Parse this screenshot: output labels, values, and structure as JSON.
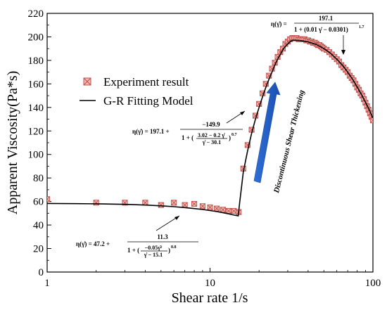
{
  "chart_data": {
    "type": "scatter",
    "xlabel": "Shear rate 1/s",
    "ylabel": "Apparent Viscosity(Pa*s)",
    "xscale": "log",
    "xlim": [
      1,
      100
    ],
    "ylim": [
      0,
      220
    ],
    "x_ticks": [
      1,
      10,
      100
    ],
    "x_tick_labels": [
      "1",
      "10",
      "100"
    ],
    "y_ticks": [
      0,
      20,
      40,
      60,
      80,
      100,
      120,
      140,
      160,
      180,
      200,
      220
    ],
    "y_tick_labels": [
      "0",
      "20",
      "40",
      "60",
      "80",
      "100",
      "120",
      "140",
      "160",
      "180",
      "200",
      "220"
    ],
    "grid": false,
    "legend": {
      "placement": "upper-left",
      "entries": [
        {
          "label": "Experiment result",
          "marker": "boxed-x",
          "color": "#c0504d",
          "fill": "#f4b8b0"
        },
        {
          "label": "G-R Fitting Model",
          "marker": "line",
          "color": "#000000"
        }
      ]
    },
    "series": [
      {
        "name": "Experiment result",
        "kind": "scatter",
        "points": [
          [
            1.0,
            62
          ],
          [
            2.0,
            59
          ],
          [
            3.0,
            59
          ],
          [
            4.0,
            59
          ],
          [
            5.0,
            57
          ],
          [
            6.0,
            59
          ],
          [
            7.0,
            57
          ],
          [
            8.0,
            58
          ],
          [
            9.0,
            56
          ],
          [
            10.0,
            55
          ],
          [
            11.0,
            54
          ],
          [
            12.0,
            53
          ],
          [
            13.0,
            52
          ],
          [
            14.0,
            52
          ],
          [
            15.0,
            51
          ],
          [
            16.0,
            88
          ],
          [
            17.0,
            108
          ],
          [
            18.0,
            121
          ],
          [
            19.0,
            133
          ],
          [
            20.0,
            143
          ],
          [
            21.0,
            152
          ],
          [
            22.0,
            160
          ],
          [
            23.0,
            167
          ],
          [
            24.0,
            173
          ],
          [
            25.0,
            178
          ],
          [
            26.0,
            183
          ],
          [
            27.0,
            187
          ],
          [
            28.0,
            190
          ],
          [
            29.0,
            194
          ],
          [
            30.0,
            196
          ],
          [
            31.0,
            198
          ],
          [
            32.0,
            199
          ],
          [
            33.0,
            199
          ],
          [
            34.0,
            199
          ],
          [
            35.0,
            198
          ],
          [
            36.0,
            198
          ],
          [
            37.0,
            198
          ],
          [
            38.0,
            198
          ],
          [
            39.0,
            197
          ],
          [
            40.0,
            197
          ],
          [
            41.0,
            196
          ],
          [
            42.0,
            196
          ],
          [
            43.0,
            195
          ],
          [
            44.0,
            195
          ],
          [
            45.0,
            194
          ],
          [
            46.0,
            193
          ],
          [
            47.0,
            193
          ],
          [
            48.0,
            192
          ],
          [
            49.0,
            191
          ],
          [
            50.0,
            190
          ],
          [
            52.0,
            189
          ],
          [
            54.0,
            187
          ],
          [
            56.0,
            185
          ],
          [
            58.0,
            183
          ],
          [
            60.0,
            181
          ],
          [
            62.0,
            179
          ],
          [
            64.0,
            176
          ],
          [
            66.0,
            174
          ],
          [
            68.0,
            172
          ],
          [
            70.0,
            170
          ],
          [
            72.0,
            167
          ],
          [
            74.0,
            165
          ],
          [
            76.0,
            163
          ],
          [
            78.0,
            160
          ],
          [
            80.0,
            157
          ],
          [
            82.0,
            155
          ],
          [
            84.0,
            152
          ],
          [
            86.0,
            150
          ],
          [
            88.0,
            147
          ],
          [
            90.0,
            144
          ],
          [
            92.0,
            141
          ],
          [
            94.0,
            138
          ],
          [
            96.0,
            135
          ],
          [
            98.0,
            132
          ],
          [
            100.0,
            129
          ]
        ]
      },
      {
        "name": "G-R Fitting Model",
        "kind": "line",
        "points": [
          [
            1.0,
            58.3
          ],
          [
            1.5,
            58.2
          ],
          [
            2.0,
            58.0
          ],
          [
            3.0,
            57.6
          ],
          [
            4.0,
            57.0
          ],
          [
            5.0,
            56.3
          ],
          [
            6.0,
            55.6
          ],
          [
            7.0,
            54.8
          ],
          [
            8.0,
            54.0
          ],
          [
            9.0,
            53.2
          ],
          [
            10.0,
            52.3
          ],
          [
            11.0,
            51.4
          ],
          [
            12.0,
            50.5
          ],
          [
            13.0,
            49.5
          ],
          [
            14.0,
            48.5
          ],
          [
            14.9,
            47.8
          ],
          [
            15.2,
            59
          ],
          [
            15.6,
            72
          ],
          [
            16.0,
            85
          ],
          [
            17.0,
            103
          ],
          [
            18.0,
            118
          ],
          [
            19.0,
            130
          ],
          [
            20.0,
            140
          ],
          [
            21.0,
            149
          ],
          [
            22.0,
            157
          ],
          [
            23.0,
            164
          ],
          [
            24.0,
            170
          ],
          [
            25.0,
            176
          ],
          [
            26.0,
            181
          ],
          [
            27.0,
            185
          ],
          [
            28.0,
            189
          ],
          [
            29.0,
            192
          ],
          [
            30.0,
            194
          ],
          [
            31.0,
            196
          ],
          [
            32.0,
            197
          ],
          [
            33.0,
            197
          ],
          [
            35.0,
            197
          ],
          [
            37.0,
            196.6
          ],
          [
            40.0,
            195.8
          ],
          [
            45.0,
            193.5
          ],
          [
            50.0,
            190
          ],
          [
            55.0,
            186
          ],
          [
            60.0,
            181
          ],
          [
            65.0,
            176
          ],
          [
            70.0,
            170
          ],
          [
            75.0,
            164
          ],
          [
            80.0,
            157.5
          ],
          [
            85.0,
            151
          ],
          [
            90.0,
            144.5
          ],
          [
            95.0,
            138
          ],
          [
            100.0,
            131
          ]
        ]
      }
    ],
    "annotations": {
      "eq_low": {
        "lhs": "η(γ̇) = 47.2 +",
        "num": "11.3",
        "den_prefix": "1 + (",
        "inner_num": "−0.05γ̇²",
        "inner_den": "γ̇ − 15.1",
        "exponent": "0.8"
      },
      "eq_mid": {
        "lhs": "η(γ̇) = 197.1 +",
        "num": "−149.9",
        "den_prefix": "1 + (",
        "inner_num": "3.02 − 0.2 γ̇",
        "inner_den": "γ̇ − 30.1",
        "exponent": "0.7"
      },
      "eq_high": {
        "lhs": "η(γ̇) =",
        "num": "197.1",
        "den": "1 + (0.01 γ̇ − 0.0301)",
        "exponent": "1.7"
      },
      "thickening_label": "Discontinuous Shear Thickening"
    }
  }
}
